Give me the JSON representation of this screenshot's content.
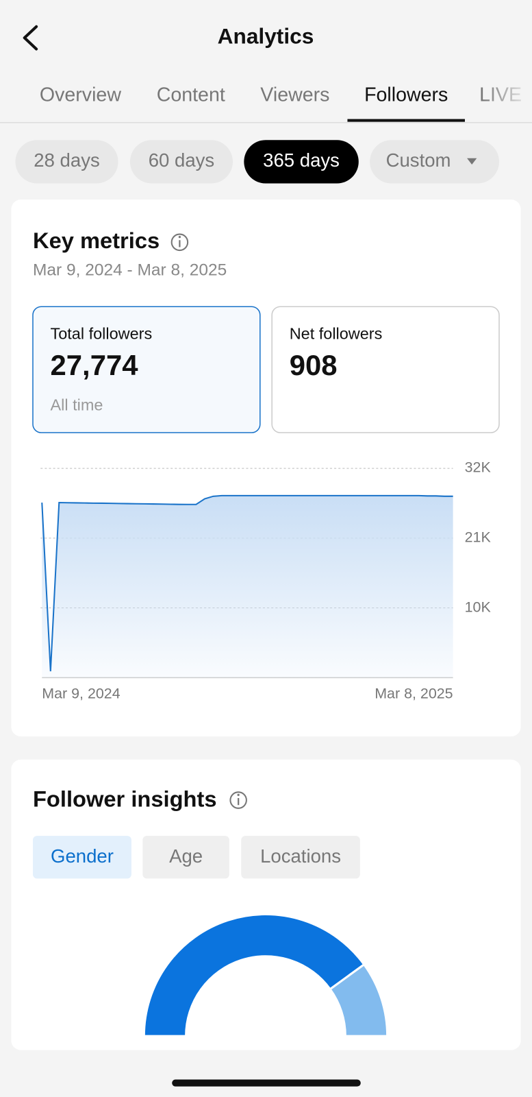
{
  "header": {
    "title": "Analytics"
  },
  "tabs": {
    "items": [
      "Overview",
      "Content",
      "Viewers",
      "Followers",
      "LIVE"
    ],
    "active": 3
  },
  "ranges": {
    "items": [
      "28 days",
      "60 days",
      "365 days",
      "Custom"
    ],
    "active": 2
  },
  "key_metrics": {
    "title": "Key metrics",
    "date_range": "Mar 9, 2024 - Mar 8, 2025",
    "cards": [
      {
        "label": "Total followers",
        "value": "27,774",
        "note": "All time"
      },
      {
        "label": "Net followers",
        "value": "908"
      }
    ]
  },
  "insights": {
    "title": "Follower insights",
    "tabs": [
      "Gender",
      "Age",
      "Locations"
    ],
    "active": 0
  },
  "chart_data": [
    {
      "type": "area",
      "color": "#1a73c9",
      "grid": true,
      "x": [
        "Mar 9, 2024",
        null,
        null,
        null,
        null,
        null,
        null,
        null,
        null,
        null,
        null,
        null,
        null,
        null,
        null,
        null,
        null,
        null,
        null,
        null,
        null,
        null,
        null,
        null,
        null,
        null,
        null,
        null,
        null,
        null,
        null,
        null,
        null,
        null,
        null,
        null,
        null,
        null,
        null,
        null,
        null,
        null,
        null,
        null,
        null,
        null,
        null,
        null,
        "Mar 8, 2025"
      ],
      "values": [
        26600,
        0,
        26600,
        26580,
        26560,
        26540,
        26520,
        26500,
        26480,
        26460,
        26440,
        26420,
        26400,
        26380,
        26360,
        26340,
        26320,
        26300,
        26300,
        27200,
        27600,
        27700,
        27700,
        27700,
        27700,
        27700,
        27700,
        27700,
        27700,
        27700,
        27700,
        27700,
        27700,
        27700,
        27700,
        27700,
        27700,
        27700,
        27700,
        27700,
        27700,
        27700,
        27700,
        27700,
        27700,
        27650,
        27650,
        27600,
        27600
      ],
      "ylim": [
        -1000,
        32000
      ],
      "yticks": [
        {
          "value": 32000,
          "label": "32K"
        },
        {
          "value": 21000,
          "label": "21K"
        },
        {
          "value": 10000,
          "label": "10K"
        }
      ]
    },
    {
      "type": "half-donut",
      "values": [
        80,
        20
      ],
      "colors": [
        "#0b74de",
        "#82bbee"
      ]
    }
  ]
}
